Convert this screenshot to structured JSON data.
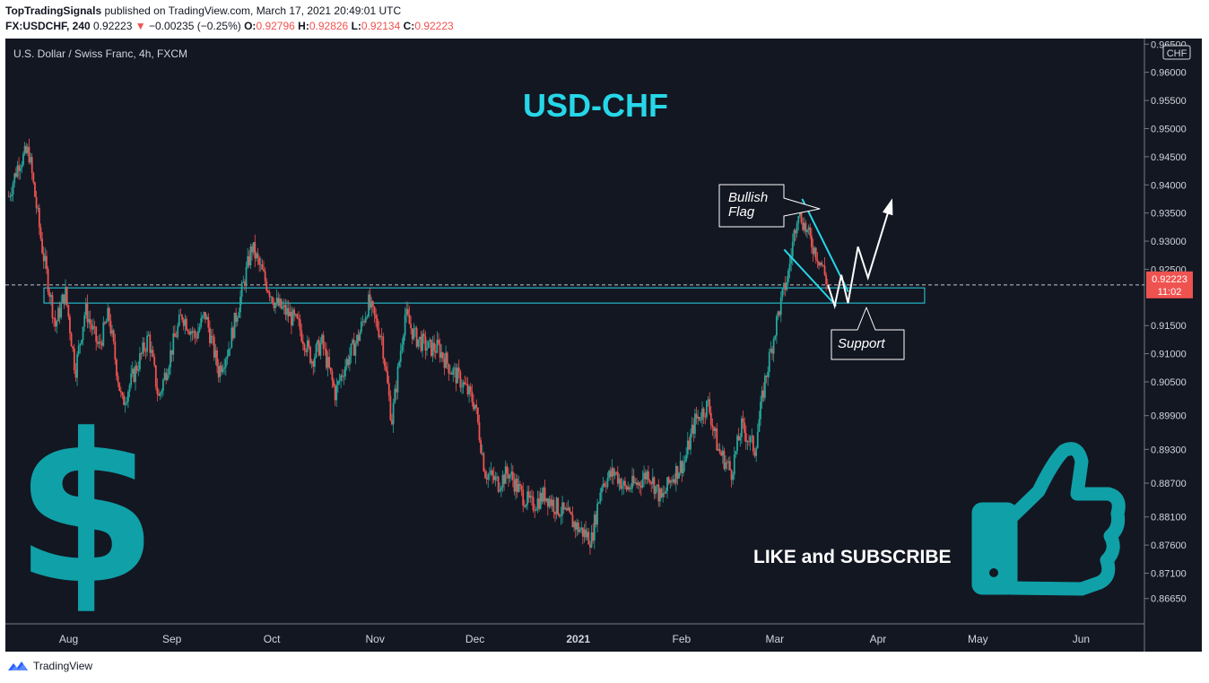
{
  "header": {
    "publisher": "TopTradingSignals",
    "published_text": "published on TradingView.com, March 17, 2021 20:49:01 UTC",
    "symbol": "FX:USDCHF, 240",
    "last": "0.92223",
    "change": "−0.00235 (−0.25%)",
    "o_label": "O:",
    "o": "0.92796",
    "h_label": "H:",
    "h": "0.92826",
    "l_label": "L:",
    "l": "0.92134",
    "c_label": "C:",
    "c": "0.92223"
  },
  "chart_title": "U.S. Dollar / Swiss Franc, 4h, FXCM",
  "pair_label": "USD-CHF",
  "currency_badge": "CHF",
  "price_label": {
    "value": "0.92223",
    "countdown": "11:02"
  },
  "annotations": {
    "bullish_flag": [
      "Bullish",
      "Flag"
    ],
    "support": "Support",
    "cta": "LIKE and SUBSCRIBE"
  },
  "icons": {
    "dollar": "dollar-sign-icon",
    "thumb": "thumbs-up-icon",
    "brand": "tradingview-logo-icon"
  },
  "footer": {
    "brand": "TradingView"
  },
  "colors": {
    "background": "#131722",
    "accent": "#26d7e8",
    "teal_icon": "#10a0a8",
    "up": "#26a69a",
    "down": "#ef5350",
    "axis_text": "#d1d4dc"
  },
  "chart_data": {
    "type": "line",
    "x": [
      "2020-07-14",
      "2020-07-17",
      "2020-07-20",
      "2020-07-24",
      "2020-07-28",
      "2020-07-31",
      "2020-08-03",
      "2020-08-06",
      "2020-08-10",
      "2020-08-13",
      "2020-08-17",
      "2020-08-21",
      "2020-08-25",
      "2020-08-28",
      "2020-09-01",
      "2020-09-04",
      "2020-09-08",
      "2020-09-11",
      "2020-09-15",
      "2020-09-18",
      "2020-09-22",
      "2020-09-25",
      "2020-09-29",
      "2020-10-02",
      "2020-10-06",
      "2020-10-09",
      "2020-10-13",
      "2020-10-16",
      "2020-10-20",
      "2020-10-23",
      "2020-10-27",
      "2020-10-30",
      "2020-11-03",
      "2020-11-06",
      "2020-11-10",
      "2020-11-13",
      "2020-11-17",
      "2020-11-20",
      "2020-11-24",
      "2020-11-27",
      "2020-12-01",
      "2020-12-04",
      "2020-12-08",
      "2020-12-11",
      "2020-12-15",
      "2020-12-18",
      "2020-12-22",
      "2020-12-25",
      "2020-12-29",
      "2021-01-01",
      "2021-01-05",
      "2021-01-08",
      "2021-01-12",
      "2021-01-15",
      "2021-01-19",
      "2021-01-22",
      "2021-01-26",
      "2021-01-29",
      "2021-02-02",
      "2021-02-05",
      "2021-02-09",
      "2021-02-12",
      "2021-02-16",
      "2021-02-19",
      "2021-02-23",
      "2021-02-26",
      "2021-03-02",
      "2021-03-05",
      "2021-03-08",
      "2021-03-11",
      "2021-03-15",
      "2021-03-17"
    ],
    "series": [
      {
        "values": [
          0.938,
          0.944,
          0.946,
          0.929,
          0.915,
          0.921,
          0.907,
          0.918,
          0.911,
          0.917,
          0.901,
          0.907,
          0.913,
          0.902,
          0.911,
          0.917,
          0.913,
          0.917,
          0.907,
          0.911,
          0.921,
          0.929,
          0.923,
          0.919,
          0.917,
          0.915,
          0.909,
          0.912,
          0.903,
          0.908,
          0.913,
          0.919,
          0.913,
          0.898,
          0.917,
          0.913,
          0.911,
          0.911,
          0.907,
          0.905,
          0.901,
          0.889,
          0.887,
          0.889,
          0.885,
          0.883,
          0.885,
          0.883,
          0.881,
          0.879,
          0.877,
          0.887,
          0.889,
          0.886,
          0.887,
          0.889,
          0.884,
          0.888,
          0.891,
          0.898,
          0.901,
          0.893,
          0.889,
          0.897,
          0.893,
          0.905,
          0.917,
          0.924,
          0.936,
          0.931,
          0.926,
          0.922
        ]
      }
    ],
    "ylim": [
      0.862,
      0.966
    ],
    "y_ticks": [
      "0.96500",
      "0.96000",
      "0.95500",
      "0.95000",
      "0.94500",
      "0.94000",
      "0.93500",
      "0.93000",
      "0.92500",
      "0.91500",
      "0.91000",
      "0.90500",
      "0.89900",
      "0.89300",
      "0.88700",
      "0.88100",
      "0.87600",
      "0.87100",
      "0.86650"
    ],
    "x_ticks": [
      "Aug",
      "Sep",
      "Oct",
      "Nov",
      "Dec",
      "2021",
      "Feb",
      "Mar",
      "Apr",
      "May",
      "Jun"
    ],
    "x_tick_dates": [
      "2020-08-01",
      "2020-09-01",
      "2020-10-01",
      "2020-11-01",
      "2020-12-01",
      "2021-01-01",
      "2021-02-01",
      "2021-03-01",
      "2021-04-01",
      "2021-05-01",
      "2021-06-01"
    ],
    "support_zone": [
      0.919,
      0.9217
    ],
    "last_price": 0.92223,
    "flag_start": "2021-03-06",
    "projection": [
      {
        "x": "2021-03-17",
        "y": 0.9222
      },
      {
        "x": "2021-03-19",
        "y": 0.9185
      },
      {
        "x": "2021-03-21",
        "y": 0.924
      },
      {
        "x": "2021-03-23",
        "y": 0.919
      },
      {
        "x": "2021-03-26",
        "y": 0.929
      },
      {
        "x": "2021-03-29",
        "y": 0.9235
      },
      {
        "x": "2021-04-05",
        "y": 0.937
      }
    ],
    "grid": false,
    "legend": "none"
  }
}
